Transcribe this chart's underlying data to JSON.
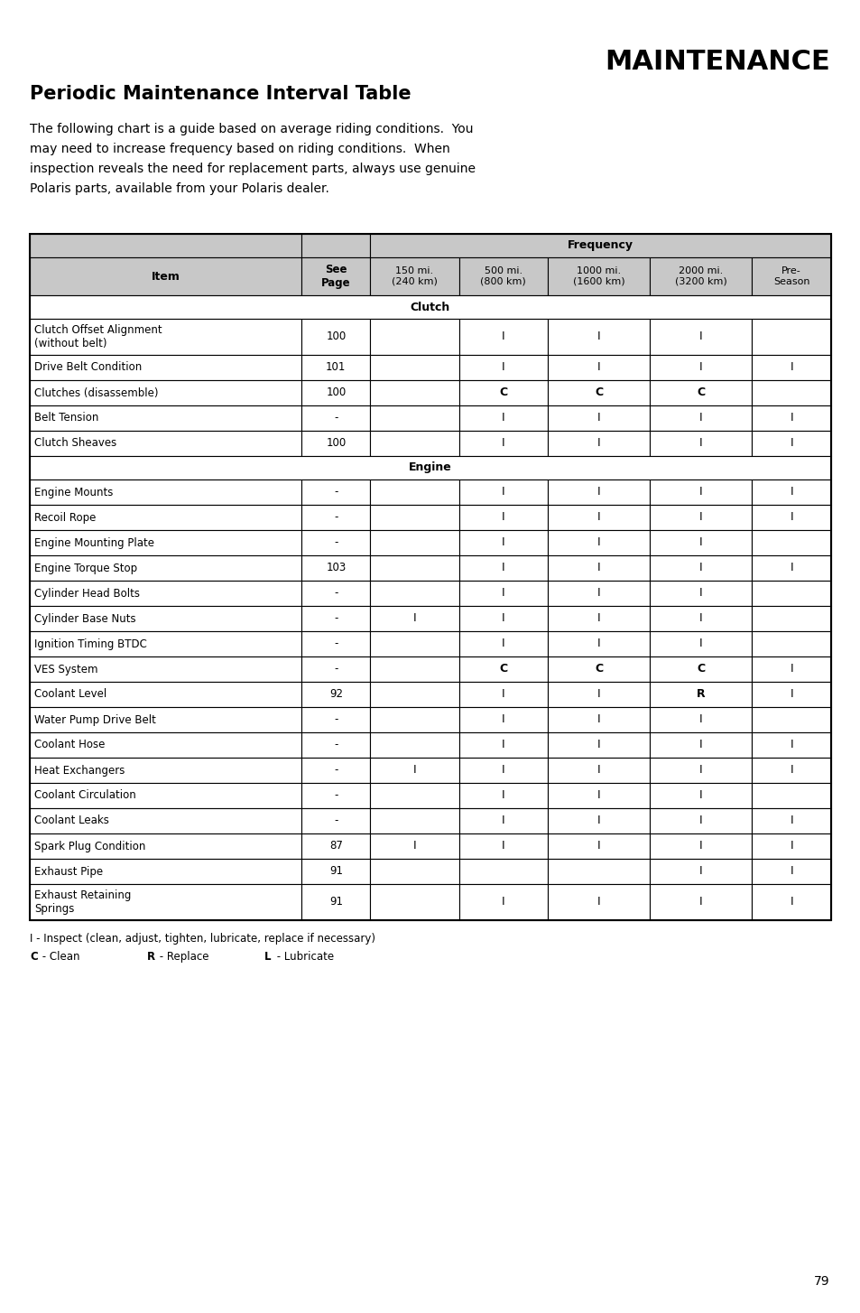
{
  "title_right": "MAINTENANCE",
  "subtitle": "Periodic Maintenance Interval Table",
  "body_text_lines": [
    "The following chart is a guide based on average riding conditions.  You",
    "may need to increase frequency based on riding conditions.  When",
    "inspection reveals the need for replacement parts, always use genuine",
    "Polaris parts, available from your Polaris dealer."
  ],
  "rows": [
    {
      "type": "header1"
    },
    {
      "type": "header2"
    },
    {
      "type": "section",
      "label": "Clutch"
    },
    {
      "type": "data",
      "item": "Clutch Offset Alignment\n(without belt)",
      "page": "100",
      "c150": "",
      "c500": "I",
      "c1000": "I",
      "c2000": "I",
      "pre": "",
      "double": true
    },
    {
      "type": "data",
      "item": "Drive Belt Condition",
      "page": "101",
      "c150": "",
      "c500": "I",
      "c1000": "I",
      "c2000": "I",
      "pre": "I",
      "double": false
    },
    {
      "type": "data",
      "item": "Clutches (disassemble)",
      "page": "100",
      "c150": "",
      "c500": "C",
      "c1000": "C",
      "c2000": "C",
      "pre": "",
      "double": false
    },
    {
      "type": "data",
      "item": "Belt Tension",
      "page": "-",
      "c150": "",
      "c500": "I",
      "c1000": "I",
      "c2000": "I",
      "pre": "I",
      "double": false
    },
    {
      "type": "data",
      "item": "Clutch Sheaves",
      "page": "100",
      "c150": "",
      "c500": "I",
      "c1000": "I",
      "c2000": "I",
      "pre": "I",
      "double": false
    },
    {
      "type": "section",
      "label": "Engine"
    },
    {
      "type": "data",
      "item": "Engine Mounts",
      "page": "-",
      "c150": "",
      "c500": "I",
      "c1000": "I",
      "c2000": "I",
      "pre": "I",
      "double": false
    },
    {
      "type": "data",
      "item": "Recoil Rope",
      "page": "-",
      "c150": "",
      "c500": "I",
      "c1000": "I",
      "c2000": "I",
      "pre": "I",
      "double": false
    },
    {
      "type": "data",
      "item": "Engine Mounting Plate",
      "page": "-",
      "c150": "",
      "c500": "I",
      "c1000": "I",
      "c2000": "I",
      "pre": "",
      "double": false
    },
    {
      "type": "data",
      "item": "Engine Torque Stop",
      "page": "103",
      "c150": "",
      "c500": "I",
      "c1000": "I",
      "c2000": "I",
      "pre": "I",
      "double": false
    },
    {
      "type": "data",
      "item": "Cylinder Head Bolts",
      "page": "-",
      "c150": "",
      "c500": "I",
      "c1000": "I",
      "c2000": "I",
      "pre": "",
      "double": false
    },
    {
      "type": "data",
      "item": "Cylinder Base Nuts",
      "page": "-",
      "c150": "I",
      "c500": "I",
      "c1000": "I",
      "c2000": "I",
      "pre": "",
      "double": false
    },
    {
      "type": "data",
      "item": "Ignition Timing BTDC",
      "page": "-",
      "c150": "",
      "c500": "I",
      "c1000": "I",
      "c2000": "I",
      "pre": "",
      "double": false
    },
    {
      "type": "data",
      "item": "VES System",
      "page": "-",
      "c150": "",
      "c500": "C",
      "c1000": "C",
      "c2000": "C",
      "pre": "I",
      "double": false
    },
    {
      "type": "data",
      "item": "Coolant Level",
      "page": "92",
      "c150": "",
      "c500": "I",
      "c1000": "I",
      "c2000": "R",
      "pre": "I",
      "double": false
    },
    {
      "type": "data",
      "item": "Water Pump Drive Belt",
      "page": "-",
      "c150": "",
      "c500": "I",
      "c1000": "I",
      "c2000": "I",
      "pre": "",
      "double": false
    },
    {
      "type": "data",
      "item": "Coolant Hose",
      "page": "-",
      "c150": "",
      "c500": "I",
      "c1000": "I",
      "c2000": "I",
      "pre": "I",
      "double": false
    },
    {
      "type": "data",
      "item": "Heat Exchangers",
      "page": "-",
      "c150": "I",
      "c500": "I",
      "c1000": "I",
      "c2000": "I",
      "pre": "I",
      "double": false
    },
    {
      "type": "data",
      "item": "Coolant Circulation",
      "page": "-",
      "c150": "",
      "c500": "I",
      "c1000": "I",
      "c2000": "I",
      "pre": "",
      "double": false
    },
    {
      "type": "data",
      "item": "Coolant Leaks",
      "page": "-",
      "c150": "",
      "c500": "I",
      "c1000": "I",
      "c2000": "I",
      "pre": "I",
      "double": false
    },
    {
      "type": "data",
      "item": "Spark Plug Condition",
      "page": "87",
      "c150": "I",
      "c500": "I",
      "c1000": "I",
      "c2000": "I",
      "pre": "I",
      "double": false
    },
    {
      "type": "data",
      "item": "Exhaust Pipe",
      "page": "91",
      "c150": "",
      "c500": "",
      "c1000": "",
      "c2000": "I",
      "pre": "I",
      "double": false
    },
    {
      "type": "data",
      "item": "Exhaust Retaining\nSprings",
      "page": "91",
      "c150": "",
      "c500": "I",
      "c1000": "I",
      "c2000": "I",
      "pre": "I",
      "double": true
    }
  ],
  "legend_line1": "I - Inspect (clean, adjust, tighten, lubricate, replace if necessary)",
  "page_number": "79",
  "header_bg": "#c8c8c8",
  "text_color": "#000000"
}
